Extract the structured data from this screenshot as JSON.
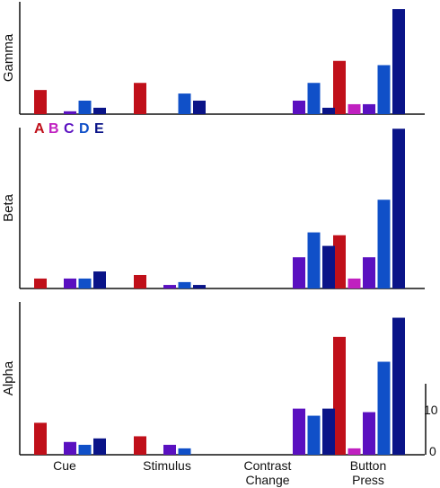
{
  "chart_data": {
    "type": "bar",
    "categories": [
      "Cue",
      "Stimulus",
      "Contrast\nChange",
      "Button\nPress"
    ],
    "legend": [
      {
        "label": "A",
        "color": "#c0101a"
      },
      {
        "label": "B",
        "color": "#c020c0"
      },
      {
        "label": "C",
        "color": "#5a10c0"
      },
      {
        "label": "D",
        "color": "#1050c8"
      },
      {
        "label": "E",
        "color": "#0a1488"
      }
    ],
    "scale_bar": {
      "low": "0",
      "high": "10"
    },
    "panels": [
      {
        "ylabel": "Gamma",
        "series": [
          {
            "values": [
              3.4,
              4.4,
              0,
              7.5
            ]
          },
          {
            "values": [
              0,
              0,
              0,
              1.4
            ]
          },
          {
            "values": [
              0.4,
              0,
              1.9,
              1.4
            ]
          },
          {
            "values": [
              1.9,
              2.9,
              4.4,
              6.9
            ]
          },
          {
            "values": [
              0.9,
              1.9,
              0.9,
              14.8
            ]
          }
        ]
      },
      {
        "ylabel": "Beta",
        "series": [
          {
            "values": [
              1.4,
              1.9,
              0,
              7.5
            ]
          },
          {
            "values": [
              0,
              0,
              0,
              1.4
            ]
          },
          {
            "values": [
              1.4,
              0.5,
              4.4,
              4.4
            ]
          },
          {
            "values": [
              1.4,
              0.9,
              7.9,
              12.5
            ]
          },
          {
            "values": [
              2.4,
              0.5,
              6.0,
              22.5
            ]
          }
        ]
      },
      {
        "ylabel": "Alpha",
        "series": [
          {
            "values": [
              4.5,
              2.6,
              0,
              16.6
            ]
          },
          {
            "values": [
              0,
              0,
              0,
              0.9
            ]
          },
          {
            "values": [
              1.8,
              1.4,
              6.5,
              6.0
            ]
          },
          {
            "values": [
              1.4,
              0.9,
              5.5,
              13.1
            ]
          },
          {
            "values": [
              2.3,
              0,
              6.5,
              19.3
            ]
          }
        ]
      }
    ]
  }
}
